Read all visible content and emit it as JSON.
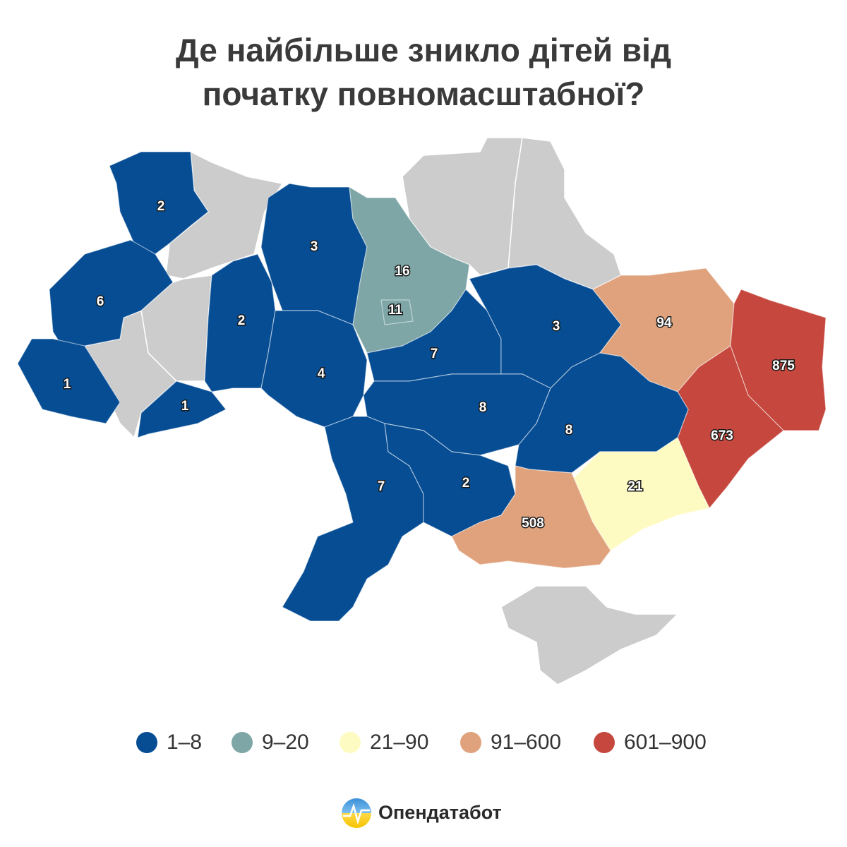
{
  "title": "Де найбільше зникло дітей від початку повномасштабної?",
  "regions": [
    {
      "value": 2,
      "color": "#064d94"
    },
    {
      "value": 6,
      "color": "#064d94"
    },
    {
      "value": 1,
      "color": "#064d94"
    },
    {
      "value": 1,
      "color": "#064d94"
    },
    {
      "value": 2,
      "color": "#064d94"
    },
    {
      "value": 3,
      "color": "#064d94"
    },
    {
      "value": 4,
      "color": "#064d94"
    },
    {
      "value": 16,
      "color": "#7fa6a6"
    },
    {
      "value": 11,
      "color": "#7fa6a6"
    },
    {
      "value": 7,
      "color": "#064d94"
    },
    {
      "value": 3,
      "color": "#064d94"
    },
    {
      "value": 94,
      "color": "#e0a27c"
    },
    {
      "value": 875,
      "color": "#c5473d"
    },
    {
      "value": 673,
      "color": "#c5473d"
    },
    {
      "value": 8,
      "color": "#064d94"
    },
    {
      "value": 7,
      "color": "#064d94"
    },
    {
      "value": 2,
      "color": "#064d94"
    },
    {
      "value": 8,
      "color": "#064d94"
    },
    {
      "value": 21,
      "color": "#fefbc2"
    },
    {
      "value": 508,
      "color": "#e0a27c"
    }
  ],
  "legend": [
    {
      "label": "1–8",
      "color": "#064d94"
    },
    {
      "label": "9–20",
      "color": "#7fa6a6"
    },
    {
      "label": "21–90",
      "color": "#fefbc2"
    },
    {
      "label": "91–600",
      "color": "#e0a27c"
    },
    {
      "label": "601–900",
      "color": "#c5473d"
    }
  ],
  "brand": "Опендатабот"
}
